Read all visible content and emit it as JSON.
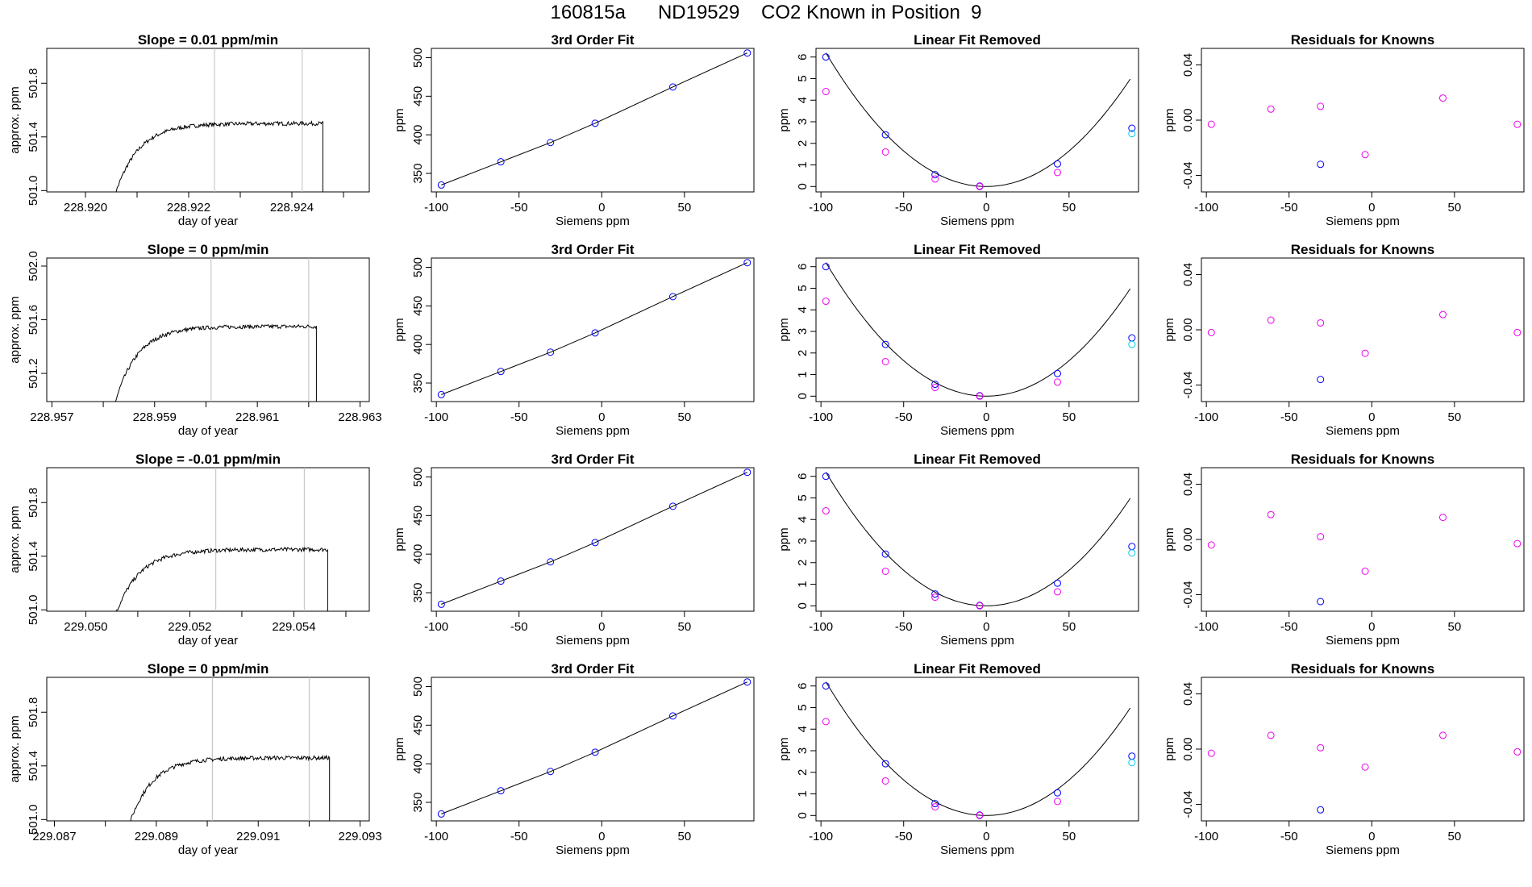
{
  "page": {
    "title": "160815a      ND19529    CO2 Known in Position  9"
  },
  "colors": {
    "axis": "#000000",
    "trace": "#000000",
    "vline": "#bebebe",
    "blue": "#0000ff",
    "magenta": "#ee00ee",
    "cyan": "#00cdee"
  },
  "x_common": {
    "label": "Siemens ppm",
    "ticks": [
      -100,
      -50,
      0,
      50
    ],
    "tick_labels": [
      "-100",
      "-50",
      "0",
      "50"
    ],
    "lim": [
      -103,
      92
    ],
    "known_x": [
      -97,
      -61,
      -31,
      -4,
      43,
      88
    ]
  },
  "rows": [
    {
      "slope_title": "Slope =  0.01  ppm/min",
      "time": {
        "xlim": [
          228.91925,
          228.9255
        ],
        "ylim": [
          500.99,
          502.06
        ],
        "x_ticks": [
          228.92,
          228.921,
          228.922,
          228.923,
          228.924,
          228.925
        ],
        "x_tick_labels": [
          "228.920",
          "",
          "228.922",
          "",
          "228.924",
          ""
        ],
        "y_ticks": [
          501.0,
          501.4,
          501.8
        ],
        "y_tick_labels": [
          "501.0",
          "501.4",
          "501.8"
        ],
        "vlines": [
          228.9225,
          228.9242
        ],
        "t_start": 228.92055,
        "t_end": 228.9246,
        "plateau": 501.5,
        "drop_to": 500.9,
        "xlabel": "day of year",
        "ylabel": "approx. ppm"
      },
      "fit": {
        "y": [
          335,
          365,
          390,
          415,
          462,
          506
        ]
      },
      "linres": {
        "y_blue": [
          6.0,
          2.4,
          0.55,
          0.02,
          1.05,
          2.7
        ],
        "y_mag": [
          4.4,
          1.6,
          0.35,
          0.0,
          0.65,
          null
        ],
        "y_cyan": 2.45
      },
      "resid": {
        "y_blue": [
          null,
          null,
          -0.032,
          null,
          null,
          null
        ],
        "y_mag": [
          -0.003,
          0.008,
          0.01,
          -0.025,
          0.016,
          -0.003
        ]
      }
    },
    {
      "slope_title": "Slope =  0  ppm/min",
      "time": {
        "xlim": [
          228.9569,
          228.96318
        ],
        "ylim": [
          500.99,
          502.06
        ],
        "x_ticks": [
          228.957,
          228.958,
          228.959,
          228.96,
          228.961,
          228.962,
          228.963
        ],
        "x_tick_labels": [
          "228.957",
          "",
          "228.959",
          "",
          "228.961",
          "",
          "228.963"
        ],
        "y_ticks": [
          501.2,
          501.6,
          502.0
        ],
        "y_tick_labels": [
          "501.2",
          "501.6",
          "502.0"
        ],
        "vlines": [
          228.9601,
          228.962
        ],
        "t_start": 228.9582,
        "t_end": 228.96215,
        "plateau": 501.55,
        "drop_to": 500.9,
        "xlabel": "day of year",
        "ylabel": "approx. ppm"
      },
      "fit": {
        "y": [
          335,
          365,
          390,
          415,
          462,
          506
        ]
      },
      "linres": {
        "y_blue": [
          6.0,
          2.4,
          0.55,
          0.02,
          1.05,
          2.7
        ],
        "y_mag": [
          4.4,
          1.6,
          0.4,
          0.0,
          0.65,
          null
        ],
        "y_cyan": 2.4
      },
      "resid": {
        "y_blue": [
          null,
          null,
          -0.036,
          null,
          null,
          null
        ],
        "y_mag": [
          -0.002,
          0.007,
          0.005,
          -0.017,
          0.011,
          -0.002
        ]
      }
    },
    {
      "slope_title": "Slope =  -0.01  ppm/min",
      "time": {
        "xlim": [
          229.04925,
          229.05545
        ],
        "ylim": [
          500.99,
          502.06
        ],
        "x_ticks": [
          229.05,
          229.051,
          229.052,
          229.053,
          229.054,
          229.055
        ],
        "x_tick_labels": [
          "229.050",
          "",
          "229.052",
          "",
          "229.054",
          ""
        ],
        "y_ticks": [
          501.0,
          501.4,
          501.8
        ],
        "y_tick_labels": [
          "501.0",
          "501.4",
          "501.8"
        ],
        "vlines": [
          229.0525,
          229.0542
        ],
        "t_start": 229.05055,
        "t_end": 229.05465,
        "plateau": 501.45,
        "drop_to": 500.9,
        "xlabel": "day of year",
        "ylabel": "approx. ppm"
      },
      "fit": {
        "y": [
          335,
          365,
          390,
          415,
          462,
          506
        ]
      },
      "linres": {
        "y_blue": [
          6.0,
          2.4,
          0.55,
          0.02,
          1.05,
          2.75
        ],
        "y_mag": [
          4.4,
          1.6,
          0.4,
          0.0,
          0.65,
          null
        ],
        "y_cyan": 2.45
      },
      "resid": {
        "y_blue": [
          null,
          null,
          -0.045,
          null,
          null,
          null
        ],
        "y_mag": [
          -0.004,
          0.018,
          0.002,
          -0.023,
          0.016,
          -0.003
        ]
      }
    },
    {
      "slope_title": "Slope =  0  ppm/min",
      "time": {
        "xlim": [
          229.08685,
          229.09318
        ],
        "ylim": [
          500.99,
          502.06
        ],
        "x_ticks": [
          229.087,
          229.088,
          229.089,
          229.09,
          229.091,
          229.092,
          229.093
        ],
        "x_tick_labels": [
          "229.087",
          "",
          "229.089",
          "",
          "229.091",
          "",
          "229.093"
        ],
        "y_ticks": [
          501.0,
          501.4,
          501.8
        ],
        "y_tick_labels": [
          "501.0",
          "501.4",
          "501.8"
        ],
        "vlines": [
          229.0901,
          229.092
        ],
        "t_start": 229.08845,
        "t_end": 229.0924,
        "plateau": 501.46,
        "drop_to": 500.9,
        "xlabel": "day of year",
        "ylabel": "approx. ppm"
      },
      "fit": {
        "y": [
          335,
          365,
          390,
          415,
          462,
          506
        ]
      },
      "linres": {
        "y_blue": [
          6.0,
          2.4,
          0.55,
          0.02,
          1.05,
          2.75
        ],
        "y_mag": [
          4.35,
          1.6,
          0.4,
          0.0,
          0.65,
          null
        ],
        "y_cyan": 2.45
      },
      "resid": {
        "y_blue": [
          null,
          null,
          -0.044,
          null,
          null,
          null
        ],
        "y_mag": [
          -0.003,
          0.01,
          0.001,
          -0.013,
          0.01,
          -0.002
        ]
      }
    }
  ],
  "fit_axis": {
    "title": "3rd Order Fit",
    "ylabel": "ppm",
    "ylim": [
      326,
      512
    ],
    "y_ticks": [
      350,
      400,
      450,
      500
    ],
    "y_tick_labels": [
      "350",
      "400",
      "450",
      "500"
    ]
  },
  "linres_axis": {
    "title": "Linear Fit Removed",
    "ylabel": "ppm",
    "ylim": [
      -0.25,
      6.4
    ],
    "y_ticks": [
      0,
      1,
      2,
      3,
      4,
      5,
      6
    ],
    "y_tick_labels": [
      "0",
      "1",
      "2",
      "3",
      "4",
      "5",
      "6"
    ],
    "curve_coef_a": 0.000658,
    "curve_center": 0
  },
  "resid_axis": {
    "title": "Residuals for Knowns",
    "ylabel": "ppm",
    "ylim": [
      -0.052,
      0.052
    ],
    "y_ticks": [
      -0.04,
      0,
      0.04
    ],
    "y_tick_labels": [
      "-0.04",
      "0.00",
      "0.04"
    ]
  },
  "chart_data": [
    {
      "type": "line",
      "title": "Slope =  0.01  ppm/min",
      "xlabel": "day of year",
      "ylabel": "approx. ppm",
      "xlim": [
        228.9193,
        228.9255
      ],
      "ylim": [
        501.0,
        502.06
      ]
    },
    {
      "type": "scatter",
      "title": "3rd Order Fit",
      "xlabel": "Siemens ppm",
      "ylabel": "ppm",
      "x": [
        -97,
        -61,
        -31,
        -4,
        43,
        88
      ],
      "y": [
        335,
        365,
        390,
        415,
        462,
        506
      ]
    },
    {
      "type": "scatter",
      "title": "Linear Fit Removed",
      "xlabel": "Siemens ppm",
      "ylabel": "ppm",
      "x": [
        -97,
        -61,
        -31,
        -4,
        43,
        88
      ],
      "series": [
        {
          "values": [
            6.0,
            2.4,
            0.55,
            0.02,
            1.05,
            2.7
          ]
        },
        {
          "values": [
            4.4,
            1.6,
            0.35,
            0.0,
            0.65,
            2.45
          ]
        }
      ]
    },
    {
      "type": "scatter",
      "title": "Residuals for Knowns",
      "xlabel": "Siemens ppm",
      "ylabel": "ppm",
      "x": [
        -97,
        -61,
        -31,
        -4,
        43,
        88
      ],
      "y": [
        -0.003,
        0.008,
        0.01,
        -0.025,
        0.016,
        -0.003
      ]
    }
  ]
}
